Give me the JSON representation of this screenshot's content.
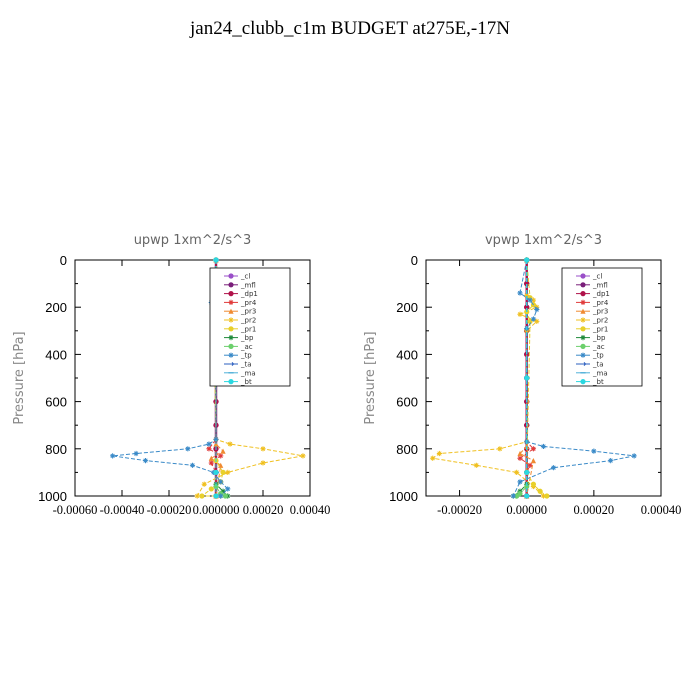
{
  "page": {
    "suptitle": "jan24_clubb_c1m  BUDGET at275E,-17N"
  },
  "chart_data": [
    {
      "type": "line",
      "title": "upwp   1xm^2/s^3",
      "ylabel": "Pressure [hPa]",
      "xlim": [
        -0.0006,
        0.0004
      ],
      "ylim": [
        1000,
        0
      ],
      "xticks": [
        -0.0006,
        -0.0004,
        -0.0002,
        0.0,
        0.0002,
        0.0004
      ],
      "xtick_labels": [
        "-0.00060",
        "-0.00040",
        "-0.00020",
        "0.000000",
        "0.00020",
        "0.00040"
      ],
      "yticks": [
        0,
        200,
        400,
        600,
        800,
        1000
      ],
      "ytick_labels": [
        "0",
        "200",
        "400",
        "600",
        "800",
        "1000"
      ],
      "legend_position": "top-right",
      "series": [
        {
          "name": "_cl",
          "color": "#9a4fc8",
          "marker": "circle",
          "x": [
            0,
            0,
            0,
            0,
            0,
            0,
            0,
            0,
            0,
            0,
            0
          ],
          "y": [
            0,
            100,
            200,
            300,
            400,
            500,
            600,
            700,
            800,
            900,
            1000
          ]
        },
        {
          "name": "_mfl",
          "color": "#7a1f7a",
          "marker": "circle",
          "x": [
            0,
            0,
            0,
            0,
            0,
            0,
            0,
            0,
            0,
            0,
            0
          ],
          "y": [
            0,
            100,
            200,
            300,
            400,
            500,
            600,
            700,
            800,
            900,
            1000
          ]
        },
        {
          "name": "_dp1",
          "color": "#b0124a",
          "marker": "circle",
          "x": [
            0,
            0,
            0,
            0,
            0,
            0,
            0,
            0,
            0,
            0,
            0
          ],
          "y": [
            0,
            100,
            200,
            300,
            400,
            500,
            600,
            700,
            800,
            900,
            1000
          ]
        },
        {
          "name": "_pr4",
          "color": "#e03a3a",
          "marker": "star",
          "x": [
            0,
            0,
            -3e-05,
            2e-05,
            -2e-05,
            0,
            0,
            0
          ],
          "y": [
            0,
            760,
            800,
            830,
            860,
            900,
            960,
            1000
          ]
        },
        {
          "name": "_pr3",
          "color": "#f08a30",
          "marker": "triangle",
          "x": [
            0,
            0,
            3e-05,
            -2e-05,
            2e-05,
            0
          ],
          "y": [
            0,
            780,
            810,
            840,
            870,
            1000
          ]
        },
        {
          "name": "_pr2",
          "color": "#f0c020",
          "marker": "star",
          "x": [
            0,
            0,
            1e-05,
            -1e-05,
            0,
            6e-05,
            0.0002,
            0.00037,
            0.0002,
            5e-05,
            -5e-05,
            -8e-05,
            0
          ],
          "y": [
            0,
            150,
            180,
            200,
            760,
            780,
            800,
            830,
            860,
            900,
            950,
            1000,
            1000
          ]
        },
        {
          "name": "_pr1",
          "color": "#e8d02a",
          "marker": "circle",
          "x": [
            0,
            1e-05,
            0,
            0,
            3e-05,
            2e-05,
            -2e-05,
            -6e-05,
            0
          ],
          "y": [
            0,
            170,
            200,
            850,
            900,
            940,
            970,
            1000,
            1000
          ]
        },
        {
          "name": "_bp",
          "color": "#1f8a3a",
          "marker": "star",
          "x": [
            0,
            0,
            3e-05,
            5e-05,
            2e-05
          ],
          "y": [
            0,
            950,
            980,
            1000,
            1000
          ]
        },
        {
          "name": "_ac",
          "color": "#6cd06c",
          "marker": "circle",
          "x": [
            0,
            0,
            2e-05,
            4e-05
          ],
          "y": [
            0,
            960,
            990,
            1000
          ]
        },
        {
          "name": "_tp",
          "color": "#3a8ac8",
          "marker": "star",
          "x": [
            0,
            -1e-05,
            -2e-05,
            0,
            0,
            -3e-05,
            -0.00012,
            -0.00034,
            -0.00044,
            -0.0003,
            -0.0001,
            -1e-05,
            2e-05,
            5e-05,
            2e-05
          ],
          "y": [
            0,
            150,
            180,
            200,
            760,
            780,
            800,
            820,
            830,
            850,
            870,
            900,
            940,
            970,
            1000
          ]
        },
        {
          "name": "_ta",
          "color": "#2b5fbf",
          "marker": "arrow",
          "x": [
            0,
            0,
            0,
            0
          ],
          "y": [
            0,
            500,
            900,
            1000
          ]
        },
        {
          "name": "_ma",
          "color": "#4fb0d8",
          "marker": "dash",
          "x": [
            0,
            0,
            0,
            0
          ],
          "y": [
            0,
            500,
            900,
            1000
          ]
        },
        {
          "name": "_bt",
          "color": "#2ad8e0",
          "marker": "circle",
          "x": [
            0,
            0,
            0,
            0
          ],
          "y": [
            0,
            500,
            900,
            1000
          ]
        }
      ]
    },
    {
      "type": "line",
      "title": "vpwp   1xm^2/s^3",
      "ylabel": "Pressure [hPa]",
      "xlim": [
        -0.0003,
        0.0004
      ],
      "ylim": [
        1000,
        0
      ],
      "xticks": [
        -0.0002,
        0.0,
        0.0002,
        0.0004
      ],
      "xtick_labels": [
        "-0.00020",
        "0.00000",
        "0.00020",
        "0.00040"
      ],
      "yticks": [
        0,
        200,
        400,
        600,
        800,
        1000
      ],
      "ytick_labels": [
        "0",
        "200",
        "400",
        "600",
        "800",
        "1000"
      ],
      "legend_position": "top-right",
      "series": [
        {
          "name": "_cl",
          "color": "#9a4fc8",
          "marker": "circle",
          "x": [
            0,
            0,
            0,
            0,
            0,
            0,
            0,
            0,
            0,
            0,
            0
          ],
          "y": [
            0,
            100,
            200,
            300,
            400,
            500,
            600,
            700,
            800,
            900,
            1000
          ]
        },
        {
          "name": "_mfl",
          "color": "#7a1f7a",
          "marker": "circle",
          "x": [
            0,
            0,
            0,
            0,
            0,
            0,
            0,
            0,
            0,
            0,
            0
          ],
          "y": [
            0,
            100,
            200,
            300,
            400,
            500,
            600,
            700,
            800,
            900,
            1000
          ]
        },
        {
          "name": "_dp1",
          "color": "#b0124a",
          "marker": "circle",
          "x": [
            0,
            0,
            0,
            0,
            0,
            0,
            0,
            0,
            0,
            0,
            0
          ],
          "y": [
            0,
            100,
            200,
            300,
            400,
            500,
            600,
            700,
            800,
            900,
            1000
          ]
        },
        {
          "name": "_pr4",
          "color": "#e03a3a",
          "marker": "star",
          "x": [
            0,
            0,
            2e-05,
            -2e-05,
            1e-05,
            0,
            0
          ],
          "y": [
            0,
            770,
            800,
            840,
            870,
            900,
            1000
          ]
        },
        {
          "name": "_pr3",
          "color": "#f08a30",
          "marker": "triangle",
          "x": [
            0,
            0,
            -2e-05,
            2e-05,
            0
          ],
          "y": [
            0,
            790,
            820,
            850,
            1000
          ]
        },
        {
          "name": "_pr2",
          "color": "#f0c020",
          "marker": "star",
          "x": [
            0,
            0,
            2e-05,
            3e-05,
            -2e-05,
            3e-05,
            0,
            0,
            -8e-05,
            -0.00026,
            -0.00028,
            -0.00015,
            -3e-05,
            2e-05,
            5e-05
          ],
          "y": [
            0,
            150,
            170,
            200,
            230,
            260,
            300,
            770,
            800,
            820,
            840,
            870,
            900,
            960,
            1000
          ]
        },
        {
          "name": "_pr1",
          "color": "#e8d02a",
          "marker": "circle",
          "x": [
            0,
            1e-05,
            2e-05,
            0,
            1e-05,
            0,
            2e-05,
            4e-05,
            6e-05
          ],
          "y": [
            0,
            160,
            190,
            220,
            260,
            900,
            950,
            980,
            1000
          ]
        },
        {
          "name": "_bp",
          "color": "#1f8a3a",
          "marker": "star",
          "x": [
            0,
            0,
            -2e-05,
            -4e-05,
            -3e-05
          ],
          "y": [
            0,
            950,
            980,
            1000,
            1000
          ]
        },
        {
          "name": "_ac",
          "color": "#6cd06c",
          "marker": "circle",
          "x": [
            0,
            0,
            -2e-05,
            -3e-05
          ],
          "y": [
            0,
            960,
            990,
            1000
          ]
        },
        {
          "name": "_tp",
          "color": "#3a8ac8",
          "marker": "star",
          "x": [
            0,
            -2e-05,
            1e-05,
            3e-05,
            2e-05,
            0,
            0,
            5e-05,
            0.0002,
            0.00032,
            0.00025,
            8e-05,
            -2e-05,
            -4e-05
          ],
          "y": [
            0,
            140,
            170,
            210,
            250,
            290,
            770,
            790,
            810,
            830,
            850,
            880,
            940,
            1000
          ]
        },
        {
          "name": "_ta",
          "color": "#2b5fbf",
          "marker": "arrow",
          "x": [
            0,
            0,
            0,
            0
          ],
          "y": [
            0,
            500,
            900,
            1000
          ]
        },
        {
          "name": "_ma",
          "color": "#4fb0d8",
          "marker": "dash",
          "x": [
            0,
            0,
            0,
            0
          ],
          "y": [
            0,
            500,
            900,
            1000
          ]
        },
        {
          "name": "_bt",
          "color": "#2ad8e0",
          "marker": "circle",
          "x": [
            0,
            0,
            0,
            0
          ],
          "y": [
            0,
            500,
            900,
            1000
          ]
        }
      ]
    }
  ]
}
